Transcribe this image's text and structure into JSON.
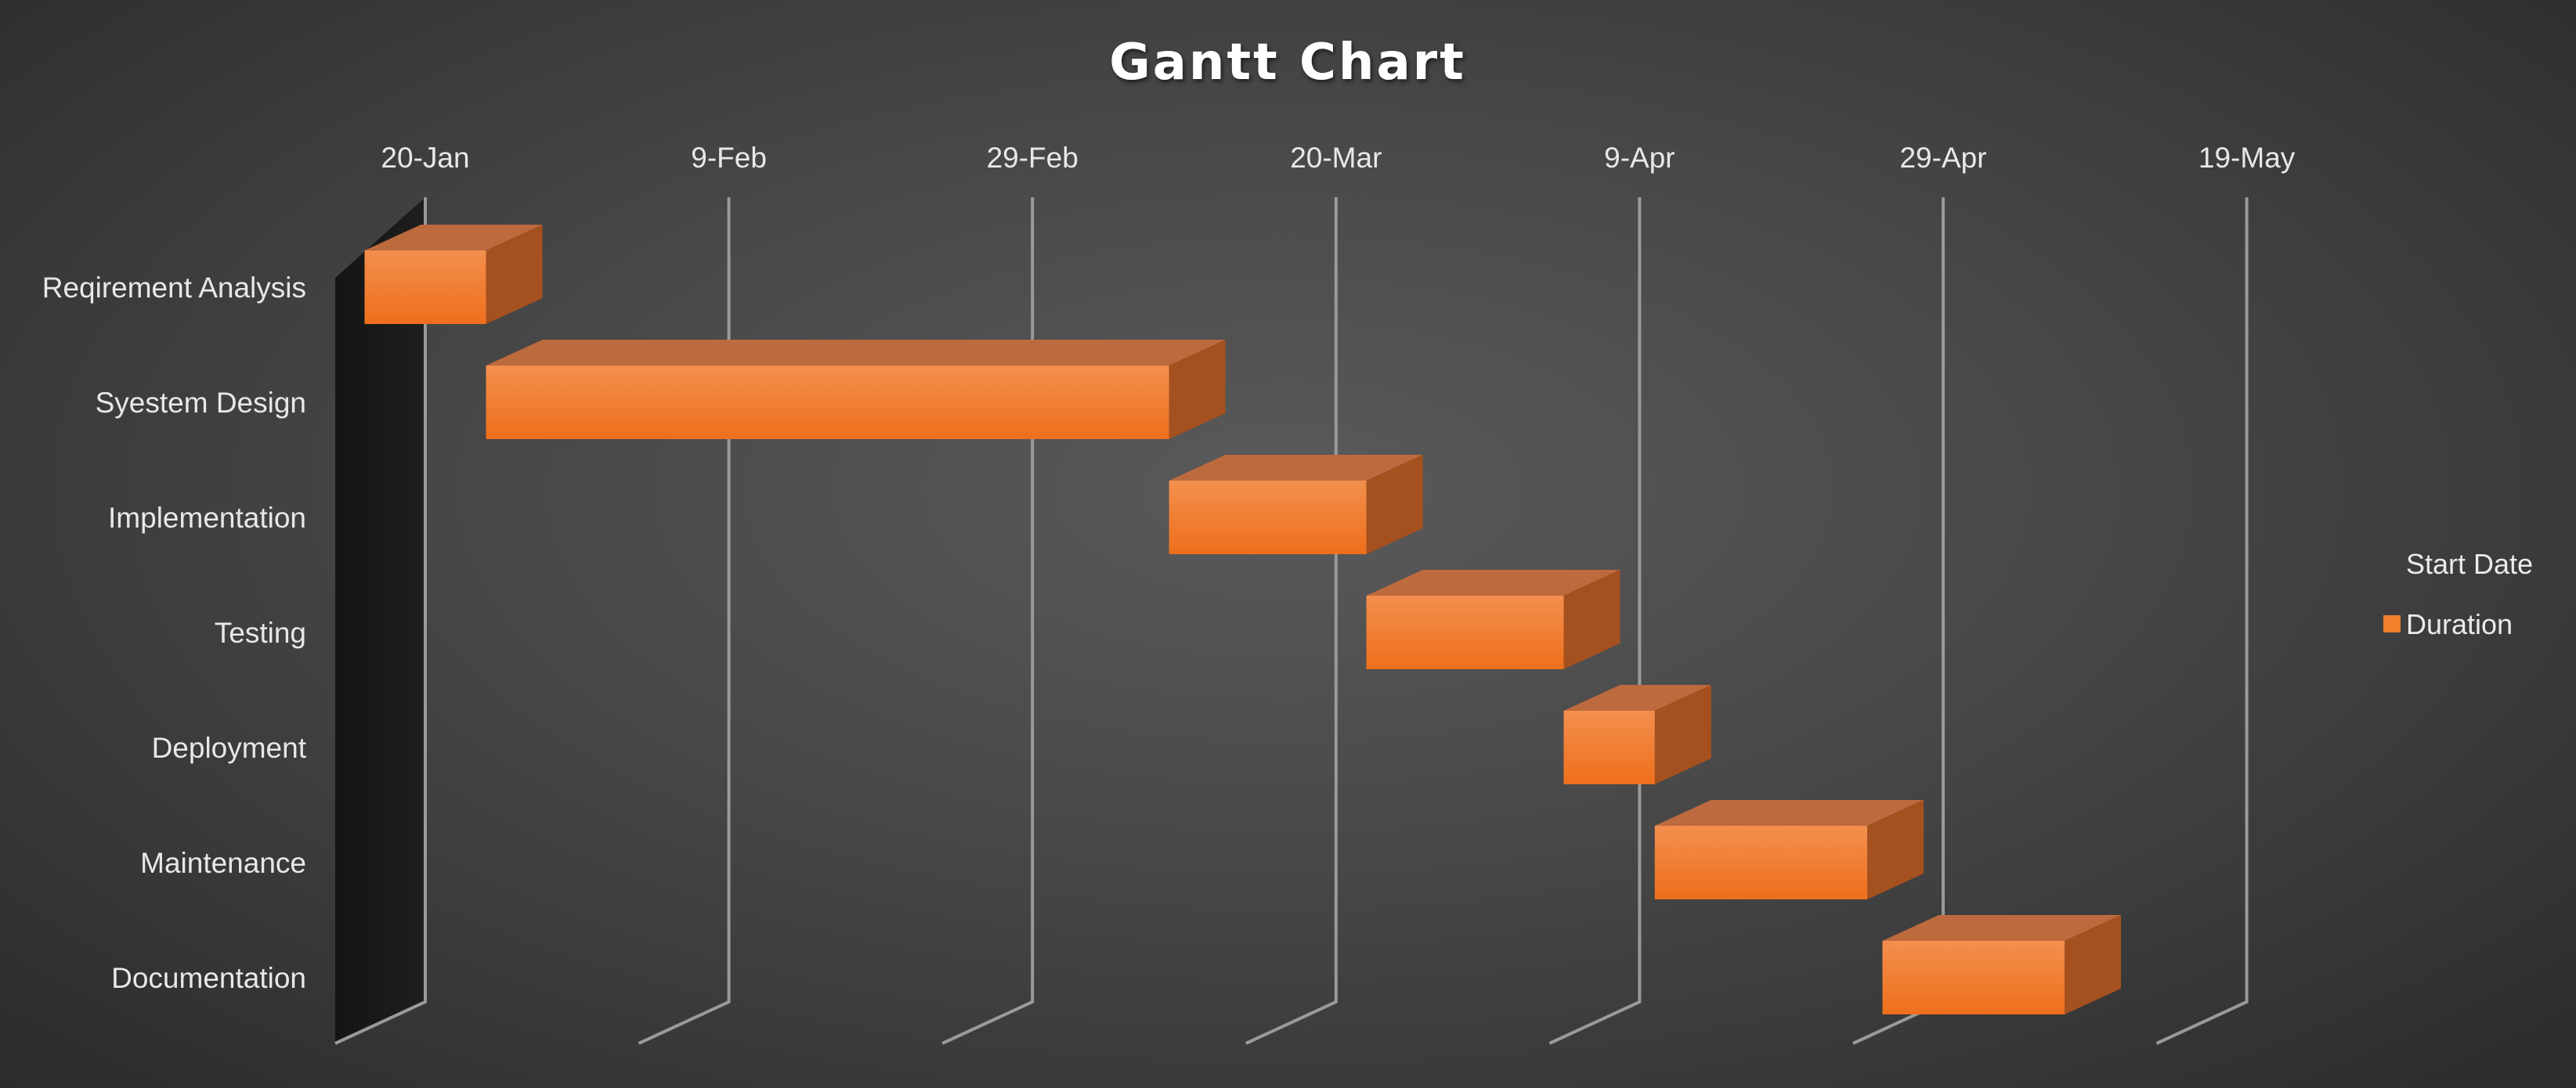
{
  "chart_data": {
    "type": "bar",
    "orientation": "horizontal",
    "stacked": true,
    "three_d": true,
    "title": "Gantt Chart",
    "categories": [
      "Reqirement Analysis",
      "Syestem Design",
      "Implementation",
      "Testing",
      "Deployment",
      "Maintenance",
      "Documentation"
    ],
    "series": [
      {
        "name": "Start Date",
        "visible": false,
        "values": [
          "2024-01-16",
          "2024-01-24",
          "2024-03-09",
          "2024-03-22",
          "2024-04-04",
          "2024-04-10",
          "2024-04-25"
        ]
      },
      {
        "name": "Duration",
        "color": "#f07f2e",
        "values": [
          8,
          45,
          13,
          13,
          6,
          14,
          12
        ]
      }
    ],
    "x_axis": {
      "type": "date",
      "position": "top",
      "range": [
        "2024-01-15",
        "2024-05-19"
      ],
      "ticks": [
        "2024-01-20",
        "2024-02-09",
        "2024-02-29",
        "2024-03-20",
        "2024-04-09",
        "2024-04-29",
        "2024-05-19"
      ],
      "tick_labels": [
        "20-Jan",
        "9-Feb",
        "29-Feb",
        "20-Mar",
        "9-Apr",
        "29-Apr",
        "19-May"
      ]
    },
    "gridlines": true,
    "legend": "right",
    "background_color": "#474747",
    "bar_color": "#f07f2e"
  }
}
